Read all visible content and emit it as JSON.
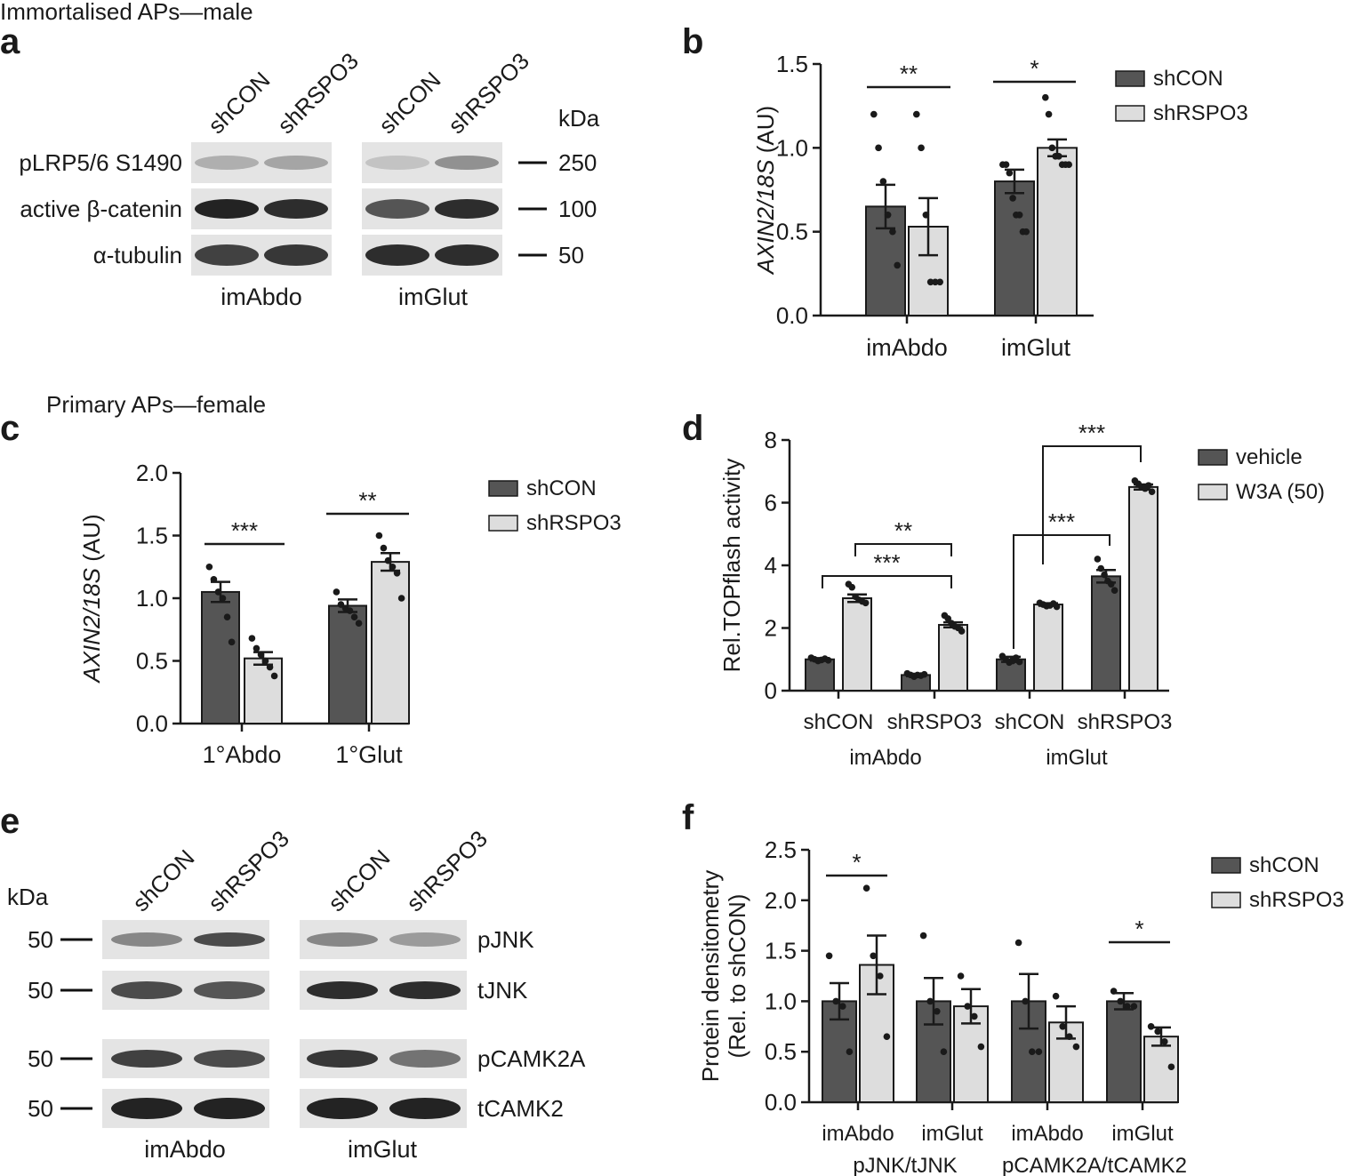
{
  "colors": {
    "dark": "#555555",
    "light": "#dddddd",
    "axis": "#1a1a1a"
  },
  "panel_a": {
    "letter": "a",
    "header": "Immortalised APs—male",
    "lanes": [
      "shCON",
      "shRSPO3",
      "shCON",
      "shRSPO3"
    ],
    "kda_label": "kDa",
    "rows": [
      {
        "label": "pLRP5/6 S1490",
        "kda": "250",
        "intensity": [
          0.25,
          0.3,
          0.15,
          0.4
        ]
      },
      {
        "label": "active β-catenin",
        "kda": "100",
        "intensity": [
          0.95,
          0.9,
          0.7,
          0.9
        ]
      },
      {
        "label": "α-tubulin",
        "kda": "50",
        "intensity": [
          0.8,
          0.85,
          0.9,
          0.9
        ]
      }
    ],
    "groups": [
      "imAbdo",
      "imGlut"
    ]
  },
  "panel_e": {
    "letter": "e",
    "lanes": [
      "shCON",
      "shRSPO3",
      "shCON",
      "shRSPO3"
    ],
    "kda_label": "kDa",
    "rows": [
      {
        "label": "pJNK",
        "kda": "50",
        "intensity": [
          0.45,
          0.75,
          0.45,
          0.35
        ]
      },
      {
        "label": "tJNK",
        "kda": "50",
        "intensity": [
          0.75,
          0.7,
          0.9,
          0.9
        ]
      },
      {
        "label": "pCAMK2A",
        "kda": "50",
        "intensity": [
          0.8,
          0.75,
          0.85,
          0.55
        ]
      },
      {
        "label": "tCAMK2",
        "kda": "50",
        "intensity": [
          0.95,
          0.95,
          0.95,
          0.95
        ]
      }
    ],
    "groups": [
      "imAbdo",
      "imGlut"
    ]
  },
  "chart_data": [
    {
      "panel": "b",
      "type": "bar",
      "ylabel_italic": "AXIN2/18S",
      "ylabel_rest": " (AU)",
      "ylim": [
        0,
        1.5
      ],
      "yticks": [
        "0.0",
        "0.5",
        "1.0",
        "1.5"
      ],
      "categories": [
        "imAbdo",
        "imGlut"
      ],
      "series": [
        {
          "name": "shCON",
          "values": [
            0.65,
            0.8
          ],
          "errors": [
            0.13,
            0.07
          ],
          "points": [
            [
              1.2,
              1.0,
              0.8,
              0.6,
              0.5,
              0.3
            ],
            [
              0.9,
              0.9,
              0.85,
              0.7,
              0.6,
              0.6,
              0.5,
              0.5
            ]
          ]
        },
        {
          "name": "shRSPO3",
          "values": [
            0.53,
            1.0
          ],
          "errors": [
            0.17,
            0.05
          ],
          "points": [
            [
              1.2,
              1.0,
              0.6,
              0.2,
              0.2,
              0.2
            ],
            [
              1.3,
              1.2,
              1.0,
              0.95,
              0.95,
              0.9,
              0.9,
              0.9
            ]
          ]
        }
      ],
      "significance": [
        "**",
        "*"
      ],
      "legend": "right",
      "grid": false
    },
    {
      "panel": "c",
      "header": "Primary APs—female",
      "type": "bar",
      "ylabel_italic": "AXIN2/18S",
      "ylabel_rest": " (AU)",
      "ylim": [
        0,
        2.0
      ],
      "yticks": [
        "0.0",
        "0.5",
        "1.0",
        "1.5",
        "2.0"
      ],
      "categories": [
        "1°Abdo",
        "1°Glut"
      ],
      "series": [
        {
          "name": "shCON",
          "values": [
            1.05,
            0.94
          ],
          "errors": [
            0.08,
            0.05
          ],
          "points": [
            [
              1.25,
              1.15,
              1.05,
              1.0,
              0.85,
              0.65
            ],
            [
              1.05,
              0.95,
              0.92,
              0.9,
              0.85,
              0.8
            ]
          ]
        },
        {
          "name": "shRSPO3",
          "values": [
            0.52,
            1.29
          ],
          "errors": [
            0.05,
            0.07
          ],
          "points": [
            [
              0.68,
              0.6,
              0.55,
              0.5,
              0.45,
              0.38
            ],
            [
              1.5,
              1.4,
              1.3,
              1.25,
              1.2,
              1.0
            ]
          ]
        }
      ],
      "significance": [
        "***",
        "**"
      ],
      "legend": "right",
      "grid": false
    },
    {
      "panel": "d",
      "type": "bar",
      "ylabel": "Rel.TOPflash activity",
      "ylim": [
        0,
        8
      ],
      "yticks": [
        "0",
        "2",
        "4",
        "6",
        "8"
      ],
      "categories": [
        "shCON",
        "shRSPO3",
        "shCON",
        "shRSPO3"
      ],
      "groups": [
        "imAbdo",
        "imGlut"
      ],
      "series": [
        {
          "name": "vehicle",
          "values": [
            1.0,
            0.5,
            1.0,
            3.65
          ],
          "errors": [
            0.04,
            0.04,
            0.08,
            0.2
          ],
          "points": [
            [
              1.05,
              1.0,
              0.95,
              0.98,
              1.02,
              0.97
            ],
            [
              0.55,
              0.5,
              0.45,
              0.5,
              0.48,
              0.52
            ],
            [
              1.1,
              1.0,
              0.9,
              0.95,
              1.05,
              0.92
            ],
            [
              4.2,
              3.9,
              3.7,
              3.5,
              3.4,
              3.2
            ]
          ]
        },
        {
          "name": "W3A (50)",
          "values": [
            2.95,
            2.1,
            2.75,
            6.5
          ],
          "errors": [
            0.12,
            0.08,
            0.04,
            0.08
          ],
          "points": [
            [
              3.4,
              3.3,
              3.0,
              2.9,
              2.85,
              2.8
            ],
            [
              2.4,
              2.3,
              2.15,
              2.05,
              2.0,
              1.9
            ],
            [
              2.8,
              2.75,
              2.7,
              2.72,
              2.78,
              2.68
            ],
            [
              6.7,
              6.6,
              6.5,
              6.45,
              6.55,
              6.35
            ]
          ]
        }
      ],
      "significance": [
        "***",
        "**",
        "***",
        "***"
      ],
      "legend": "right",
      "grid": false
    },
    {
      "panel": "f",
      "type": "bar",
      "ylabel_line1": "Protein densitometry",
      "ylabel_line2": "(Rel. to shCON)",
      "ylim": [
        0,
        2.5
      ],
      "yticks": [
        "0.0",
        "0.5",
        "1.0",
        "1.5",
        "2.0",
        "2.5"
      ],
      "categories": [
        "imAbdo",
        "imGlut",
        "imAbdo",
        "imGlut"
      ],
      "groups": [
        "pJNK/tJNK",
        "pCAMK2A/tCAMK2"
      ],
      "series": [
        {
          "name": "shCON",
          "values": [
            1.0,
            1.0,
            1.0,
            1.0
          ],
          "errors": [
            0.18,
            0.23,
            0.27,
            0.08
          ],
          "points": [
            [
              1.45,
              1.0,
              0.95,
              0.5
            ],
            [
              1.65,
              1.0,
              0.9,
              0.5
            ],
            [
              1.58,
              1.0,
              0.5,
              0.5
            ],
            [
              1.1,
              1.0,
              0.95,
              0.95
            ]
          ]
        },
        {
          "name": "shRSPO3",
          "values": [
            1.36,
            0.95,
            0.79,
            0.65
          ],
          "errors": [
            0.29,
            0.17,
            0.16,
            0.09
          ],
          "points": [
            [
              2.12,
              1.45,
              1.25,
              0.65
            ],
            [
              1.25,
              0.95,
              0.85,
              0.55
            ],
            [
              1.05,
              0.75,
              0.65,
              0.55
            ],
            [
              0.75,
              0.7,
              0.6,
              0.35
            ]
          ]
        }
      ],
      "significance": [
        "*",
        "*"
      ],
      "legend": "right",
      "grid": false
    }
  ]
}
